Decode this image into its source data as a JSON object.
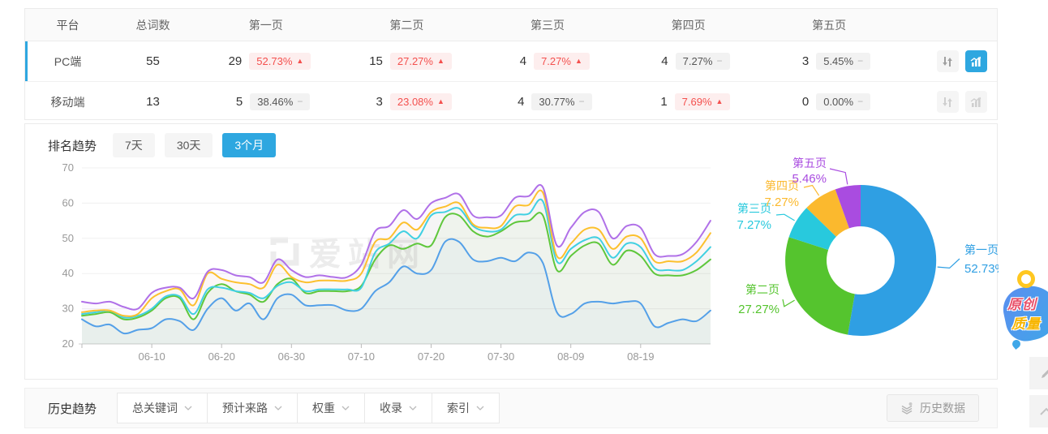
{
  "accent_color": "#2ea7e0",
  "glyphs": {
    "up": "▲",
    "flat": "−"
  },
  "table": {
    "columns": [
      "平台",
      "总词数",
      "第一页",
      "第二页",
      "第三页",
      "第四页",
      "第五页"
    ],
    "rows": [
      {
        "platform": "PC端",
        "total": "55",
        "active": true,
        "pages": [
          {
            "count": "29",
            "pct": "52.73%",
            "trend": "up"
          },
          {
            "count": "15",
            "pct": "27.27%",
            "trend": "up"
          },
          {
            "count": "4",
            "pct": "7.27%",
            "trend": "up"
          },
          {
            "count": "4",
            "pct": "7.27%",
            "trend": "flat"
          },
          {
            "count": "3",
            "pct": "5.45%",
            "trend": "flat"
          }
        ]
      },
      {
        "platform": "移动端",
        "total": "13",
        "active": false,
        "pages": [
          {
            "count": "5",
            "pct": "38.46%",
            "trend": "flat"
          },
          {
            "count": "3",
            "pct": "23.08%",
            "trend": "up"
          },
          {
            "count": "4",
            "pct": "30.77%",
            "trend": "flat"
          },
          {
            "count": "1",
            "pct": "7.69%",
            "trend": "up"
          },
          {
            "count": "0",
            "pct": "0.00%",
            "trend": "flat"
          }
        ]
      }
    ]
  },
  "trend_section": {
    "title": "排名趋势",
    "tabs": [
      {
        "label": "7天",
        "active": false
      },
      {
        "label": "30天",
        "active": false
      },
      {
        "label": "3个月",
        "active": true
      }
    ]
  },
  "watermark": "爱站网",
  "chart_data": [
    {
      "type": "line",
      "title": "排名趋势 (3个月)",
      "grid": true,
      "legend": "none",
      "ylim": [
        20,
        70
      ],
      "y_ticks": [
        20,
        30,
        40,
        50,
        60,
        70
      ],
      "x_tick_labels": [
        "06-10",
        "06-20",
        "06-30",
        "07-10",
        "07-20",
        "07-30",
        "08-09",
        "08-19"
      ],
      "x_tick_indices": [
        5,
        10,
        15,
        20,
        25,
        30,
        35,
        40
      ],
      "x": [
        "05-31",
        "06-02",
        "06-04",
        "06-06",
        "06-08",
        "06-10",
        "06-12",
        "06-14",
        "06-16",
        "06-18",
        "06-20",
        "06-22",
        "06-24",
        "06-26",
        "06-28",
        "06-30",
        "07-02",
        "07-04",
        "07-06",
        "07-08",
        "07-10",
        "07-12",
        "07-14",
        "07-16",
        "07-18",
        "07-20",
        "07-22",
        "07-24",
        "07-26",
        "07-28",
        "07-30",
        "08-01",
        "08-03",
        "08-05",
        "08-07",
        "08-09",
        "08-11",
        "08-13",
        "08-15",
        "08-17",
        "08-19",
        "08-21",
        "08-23",
        "08-25",
        "08-27",
        "08-29"
      ],
      "series": [
        {
          "name": "line-blue",
          "color": "#54a0e8",
          "values": [
            27,
            25,
            25.5,
            23,
            24,
            24.5,
            27,
            26.5,
            24,
            30,
            33,
            29.5,
            31.5,
            27,
            33,
            34,
            31,
            31,
            31,
            29.5,
            30,
            35,
            37.5,
            42,
            40,
            41,
            49,
            49,
            44,
            43.5,
            44.5,
            43.5,
            46,
            43,
            29,
            28.5,
            31.5,
            32,
            31.5,
            32,
            31.5,
            25,
            26,
            27,
            26.5,
            29.5
          ]
        },
        {
          "name": "line-green",
          "color": "#5fc73c",
          "values": [
            28,
            28.5,
            29,
            27,
            27.5,
            29.5,
            33,
            33,
            27,
            34.5,
            37,
            35,
            34,
            32,
            37,
            38.5,
            34.5,
            35,
            35,
            35,
            36.5,
            44,
            48,
            47,
            48.5,
            48,
            56,
            56.5,
            52,
            50.5,
            52,
            54.5,
            55,
            56.5,
            41,
            45,
            48,
            48.5,
            42.5,
            46.5,
            45,
            40,
            39.5,
            39.5,
            41,
            44
          ]
        },
        {
          "name": "line-cyan",
          "color": "#41d0e2",
          "values": [
            28.5,
            29,
            29.5,
            27.5,
            28,
            30,
            33.5,
            33.5,
            28.5,
            35.5,
            36,
            35,
            34.5,
            33,
            36.5,
            37.5,
            35,
            35.5,
            35.5,
            35.5,
            36,
            46,
            48.5,
            52,
            50,
            56.5,
            57.5,
            58.5,
            53.5,
            52,
            52.5,
            56.5,
            57,
            60.5,
            43.5,
            47,
            49.5,
            50,
            44.5,
            48.5,
            47.5,
            41.5,
            41,
            41,
            43.5,
            47.5
          ]
        },
        {
          "name": "line-yellow",
          "color": "#fcc02e",
          "values": [
            29,
            29.5,
            29.5,
            28,
            28.5,
            33,
            35,
            35.5,
            31,
            40,
            38.5,
            37.5,
            37,
            36,
            42.5,
            39,
            37.5,
            38,
            38,
            38,
            40,
            49,
            50,
            54.5,
            52.5,
            57.5,
            59,
            60,
            54,
            53,
            53.5,
            59,
            59.5,
            63,
            45,
            48.5,
            52.5,
            52.5,
            47,
            50.5,
            50,
            43.5,
            43.5,
            43.5,
            46,
            51.5
          ]
        },
        {
          "name": "line-purple",
          "color": "#b070e8",
          "values": [
            32,
            31.5,
            32,
            30.5,
            30,
            34.5,
            36,
            36,
            33,
            40.5,
            41,
            39.5,
            39,
            37.5,
            44,
            41,
            39,
            39.5,
            39,
            39,
            42.5,
            52,
            53.5,
            58,
            55.5,
            60,
            61.5,
            62.5,
            56.5,
            56,
            56.5,
            61.5,
            62,
            64.5,
            48,
            53,
            57.5,
            57.5,
            50,
            53.5,
            53,
            45.5,
            45,
            45.5,
            49,
            55
          ]
        }
      ]
    },
    {
      "type": "pie",
      "donut": true,
      "label_format": "name above percent, leader lines",
      "slices": [
        {
          "label": "第一页",
          "pct": 52.73,
          "color": "#2f9fe3"
        },
        {
          "label": "第二页",
          "pct": 27.27,
          "color": "#55c42e"
        },
        {
          "label": "第三页",
          "pct": 7.27,
          "color": "#28c9dd"
        },
        {
          "label": "第四页",
          "pct": 7.27,
          "color": "#fbb92e"
        },
        {
          "label": "第五页",
          "pct": 5.46,
          "color": "#a94ce0"
        }
      ]
    }
  ],
  "bottom_bar": {
    "title": "历史趋势",
    "dropdowns": [
      "总关键词",
      "预计来路",
      "权重",
      "收录",
      "索引"
    ],
    "history_button": "历史数据"
  },
  "floating": {
    "badge_line1": "原创",
    "badge_line2": "质量"
  }
}
